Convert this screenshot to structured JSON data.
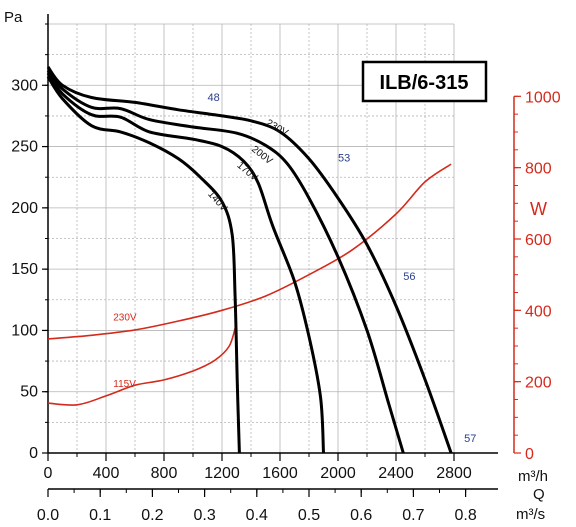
{
  "chart_data": {
    "type": "line",
    "title": "ILB/6-315",
    "y_left_label": "Pa",
    "y_right_label": "W",
    "x_label_letter": "Q",
    "x_unit_primary": "m³/h",
    "x_unit_secondary": "m³/s",
    "xlim": [
      0,
      2800
    ],
    "ylim_left": [
      0,
      350
    ],
    "ylim_right": [
      0,
      1000
    ],
    "grid": true,
    "x_ticks_primary": [
      "0",
      "400",
      "800",
      "1200",
      "1600",
      "2000",
      "2400",
      "2800"
    ],
    "x_ticks_secondary": [
      "0.0",
      "0.1",
      "0.2",
      "0.3",
      "0.4",
      "0.5",
      "0.6",
      "0.7",
      "0.8"
    ],
    "y_ticks_left": [
      "0",
      "50",
      "100",
      "150",
      "200",
      "250",
      "300"
    ],
    "y_ticks_right": [
      "0",
      "200",
      "400",
      "600",
      "800",
      "1000"
    ],
    "pressure_series": [
      {
        "name": "230V",
        "points": [
          [
            0,
            315
          ],
          [
            100,
            300
          ],
          [
            300,
            290
          ],
          [
            600,
            286
          ],
          [
            900,
            280
          ],
          [
            1200,
            275
          ],
          [
            1400,
            271
          ],
          [
            1600,
            262
          ],
          [
            1800,
            240
          ],
          [
            2000,
            208
          ],
          [
            2200,
            170
          ],
          [
            2400,
            120
          ],
          [
            2600,
            60
          ],
          [
            2780,
            0
          ]
        ]
      },
      {
        "name": "200V",
        "points": [
          [
            0,
            312
          ],
          [
            100,
            297
          ],
          [
            300,
            282
          ],
          [
            500,
            281
          ],
          [
            700,
            272
          ],
          [
            1000,
            266
          ],
          [
            1300,
            261
          ],
          [
            1500,
            251
          ],
          [
            1650,
            236
          ],
          [
            1800,
            208
          ],
          [
            2000,
            160
          ],
          [
            2200,
            100
          ],
          [
            2350,
            40
          ],
          [
            2450,
            0
          ]
        ]
      },
      {
        "name": "170V",
        "points": [
          [
            0,
            310
          ],
          [
            100,
            293
          ],
          [
            300,
            276
          ],
          [
            500,
            274
          ],
          [
            700,
            262
          ],
          [
            1000,
            256
          ],
          [
            1200,
            250
          ],
          [
            1350,
            238
          ],
          [
            1450,
            220
          ],
          [
            1550,
            185
          ],
          [
            1700,
            140
          ],
          [
            1800,
            95
          ],
          [
            1880,
            45
          ],
          [
            1900,
            0
          ]
        ]
      },
      {
        "name": "140V",
        "points": [
          [
            0,
            307
          ],
          [
            100,
            289
          ],
          [
            300,
            267
          ],
          [
            500,
            262
          ],
          [
            700,
            253
          ],
          [
            900,
            240
          ],
          [
            1050,
            225
          ],
          [
            1200,
            205
          ],
          [
            1270,
            178
          ],
          [
            1290,
            130
          ],
          [
            1305,
            60
          ],
          [
            1320,
            0
          ]
        ]
      }
    ],
    "power_series": [
      {
        "name": "230V",
        "points": [
          [
            0,
            320
          ],
          [
            300,
            330
          ],
          [
            600,
            345
          ],
          [
            900,
            370
          ],
          [
            1200,
            400
          ],
          [
            1500,
            440
          ],
          [
            1800,
            500
          ],
          [
            2100,
            570
          ],
          [
            2400,
            670
          ],
          [
            2600,
            760
          ],
          [
            2780,
            810
          ]
        ]
      },
      {
        "name": "115V",
        "points": [
          [
            0,
            140
          ],
          [
            200,
            135
          ],
          [
            400,
            160
          ],
          [
            600,
            190
          ],
          [
            800,
            205
          ],
          [
            1000,
            230
          ],
          [
            1150,
            260
          ],
          [
            1250,
            300
          ],
          [
            1300,
            365
          ]
        ]
      }
    ],
    "noise_labels": [
      {
        "text": "48",
        "x": 1100,
        "y": 287
      },
      {
        "text": "53",
        "x": 2000,
        "y": 238
      },
      {
        "text": "56",
        "x": 2450,
        "y": 141
      },
      {
        "text": "57",
        "x": 2870,
        "y": 9
      }
    ]
  }
}
